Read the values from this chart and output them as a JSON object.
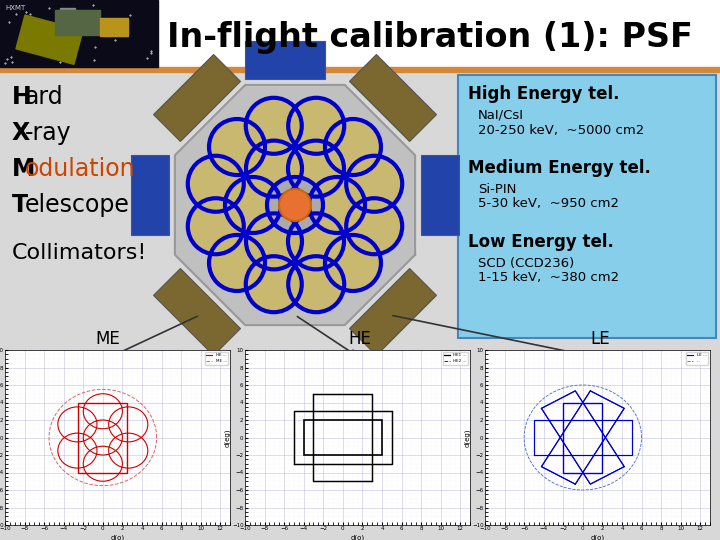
{
  "title": "In-flight calibration (1): PSF",
  "title_fontsize": 24,
  "title_color": "#000000",
  "he_title": "High Energy tel.",
  "he_sub1": "NaI/CsI",
  "he_sub2": "20-250 keV,  ~5000 cm2",
  "me_title": "Medium Energy tel.",
  "me_sub1": "Si-PIN",
  "me_sub2": "5-30 keV,  ~950 cm2",
  "le_title": "Low Energy tel.",
  "le_sub1": "SCD (CCD236)",
  "le_sub2": "1-15 keV,  ~380 cm2",
  "info_box_bg": "#87CEEB",
  "top_stripe_color": "#D4883A",
  "main_bg": "#d8d8d8",
  "header_bg": "#ffffff",
  "me_label": "ME",
  "he_label": "HE",
  "le_label": "LE",
  "modulation_color": "#cc4400",
  "telescope_center_color": "#E87030",
  "telescope_ring_color": "#0000cc",
  "telescope_fill_color": "#c8b870",
  "telescope_bg_color": "#c0c0c0",
  "panel_color_me": "#7a6030",
  "panel_color_he": "#2244aa"
}
